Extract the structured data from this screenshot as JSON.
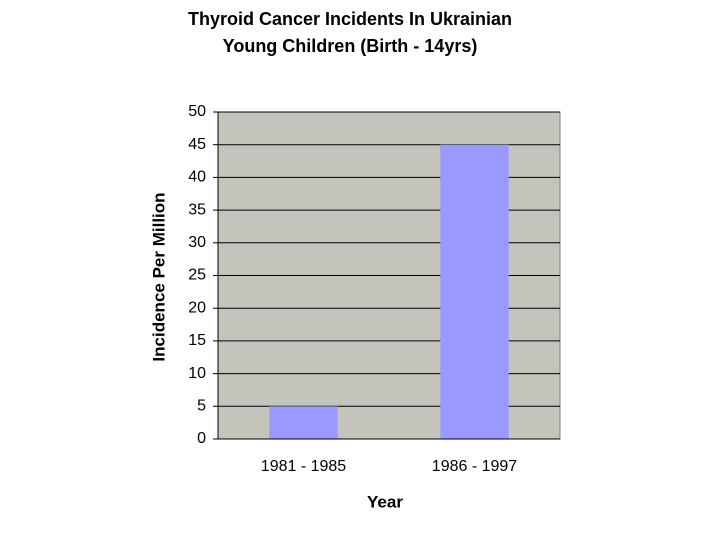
{
  "chart_data": {
    "type": "bar",
    "title": [
      "Thyroid Cancer Incidents In Ukrainian",
      "Young Children (Birth - 14yrs)"
    ],
    "x_label": "Year",
    "y_label": "Incidence Per Million",
    "categories": [
      "1981 - 1985",
      "1986 - 1997"
    ],
    "values": [
      5,
      45
    ],
    "color": "#9999ff",
    "ylim": [
      0,
      50
    ],
    "yticks": [
      0,
      5,
      10,
      15,
      20,
      25,
      30,
      35,
      40,
      45,
      50
    ],
    "grid": true
  }
}
